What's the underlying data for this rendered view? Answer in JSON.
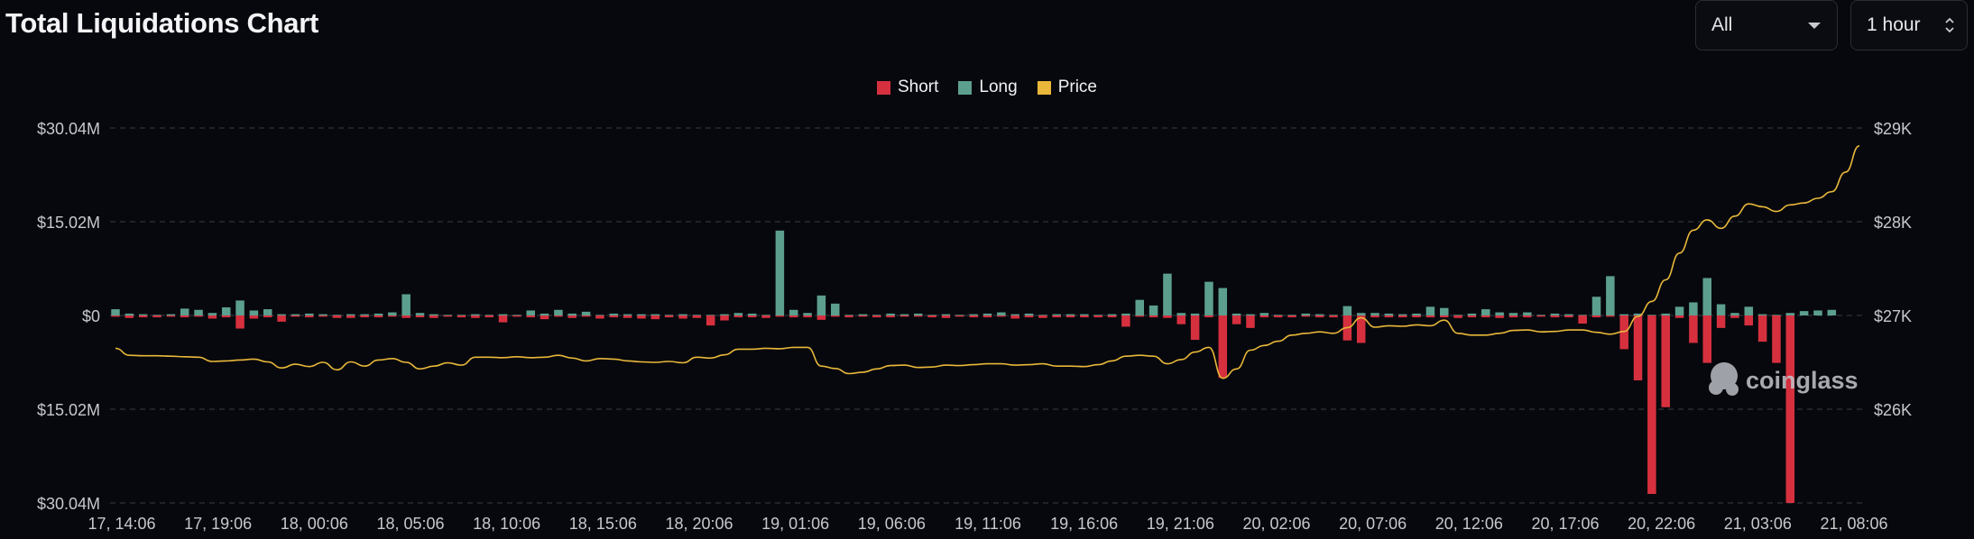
{
  "title": "Total Liquidations Chart",
  "filters": {
    "symbol": "All",
    "interval": "1 hour"
  },
  "watermark": "coinglass",
  "colors": {
    "short": "#d6303f",
    "long": "#5c9f8e",
    "price": "#e9b83a",
    "background": "#06080d",
    "grid": "#3a3d45",
    "axis_text": "#c8c8cc"
  },
  "chart_data": {
    "type": "bar",
    "title": "Total Liquidations Chart",
    "legend": [
      {
        "name": "Short",
        "color": "#d6303f"
      },
      {
        "name": "Long",
        "color": "#5c9f8e"
      },
      {
        "name": "Price",
        "color": "#e9b83a"
      }
    ],
    "legend_position": "top-center",
    "grid": true,
    "x_ticks": [
      "17, 14:06",
      "17, 19:06",
      "18, 00:06",
      "18, 05:06",
      "18, 10:06",
      "18, 15:06",
      "18, 20:06",
      "19, 01:06",
      "19, 06:06",
      "19, 11:06",
      "19, 16:06",
      "19, 21:06",
      "20, 02:06",
      "20, 07:06",
      "20, 12:06",
      "20, 17:06",
      "20, 22:06",
      "21, 03:06",
      "21, 08:06"
    ],
    "y_left_ticks": [
      "$30.04M",
      "$15.02M",
      "$0",
      "$15.02M",
      "$30.04M"
    ],
    "y_left_range": [
      -30.04,
      30.04
    ],
    "y_right_ticks": [
      "$29K",
      "$28K",
      "$27K",
      "$26K"
    ],
    "y_right_range": [
      25000,
      29000
    ],
    "series": [
      {
        "name": "Long",
        "values": [
          1.0,
          0.3,
          0.2,
          0.1,
          0.2,
          1.1,
          0.9,
          0.4,
          1.3,
          2.4,
          0.8,
          1.0,
          0.2,
          0.2,
          0.3,
          0.2,
          0.1,
          0.2,
          0.2,
          0.3,
          0.5,
          3.4,
          0.4,
          0.2,
          0.1,
          0.1,
          0.2,
          0.1,
          0.2,
          0.1,
          0.8,
          0.3,
          0.9,
          0.3,
          0.6,
          0.1,
          0.3,
          0.2,
          0.2,
          0.2,
          0.1,
          0.2,
          0.1,
          0.1,
          0.2,
          0.4,
          0.3,
          0.1,
          13.6,
          0.9,
          0.4,
          3.2,
          1.9,
          0.1,
          0.2,
          0.1,
          0.3,
          0.2,
          0.3,
          0.1,
          0.2,
          0.1,
          0.2,
          0.3,
          0.5,
          0.2,
          0.3,
          0.1,
          0.2,
          0.2,
          0.2,
          0.1,
          0.2,
          0.3,
          2.5,
          1.6,
          6.7,
          0.4,
          0.3,
          5.4,
          4.4,
          0.3,
          0.2,
          0.4,
          0.1,
          0.1,
          0.3,
          0.2,
          0.1,
          1.5,
          0.4,
          0.4,
          0.3,
          0.2,
          0.3,
          1.4,
          1.2,
          0.1,
          0.3,
          1.0,
          0.5,
          0.4,
          0.5,
          0.1,
          0.3,
          0.2,
          0.1,
          3.0,
          6.3,
          0.2,
          0.3,
          0.1,
          0.3,
          1.4,
          2.1,
          6.0,
          1.8,
          0.4,
          1.4,
          0.2,
          0.1,
          0.4,
          0.7,
          0.8,
          0.9
        ]
      },
      {
        "name": "Short",
        "values": [
          0.2,
          0.4,
          0.3,
          0.3,
          0.2,
          0.3,
          0.2,
          0.5,
          0.3,
          2.1,
          0.5,
          0.3,
          1.0,
          0.2,
          0.3,
          0.2,
          0.4,
          0.4,
          0.3,
          0.3,
          0.2,
          0.4,
          0.3,
          0.4,
          0.2,
          0.3,
          0.4,
          0.3,
          1.1,
          0.2,
          0.3,
          0.6,
          0.2,
          0.4,
          0.2,
          0.5,
          0.3,
          0.4,
          0.5,
          0.6,
          0.3,
          0.5,
          0.4,
          1.6,
          0.8,
          0.3,
          0.3,
          0.4,
          0.2,
          0.3,
          0.3,
          0.7,
          0.2,
          0.3,
          0.2,
          0.3,
          0.3,
          0.2,
          0.2,
          0.3,
          0.4,
          0.2,
          0.3,
          0.3,
          0.2,
          0.5,
          0.3,
          0.4,
          0.3,
          0.3,
          0.3,
          0.3,
          0.3,
          1.8,
          0.2,
          0.3,
          0.4,
          1.4,
          3.9,
          0.3,
          10.0,
          1.4,
          2.0,
          0.3,
          0.3,
          0.3,
          0.2,
          0.3,
          0.3,
          4.0,
          4.4,
          0.3,
          0.3,
          0.3,
          0.3,
          0.3,
          0.3,
          0.4,
          0.3,
          0.3,
          0.4,
          0.3,
          0.3,
          0.2,
          0.3,
          0.3,
          1.3,
          0.3,
          0.2,
          5.4,
          10.4,
          28.6,
          14.7,
          0.4,
          4.4,
          7.6,
          2.0,
          0.4,
          1.6,
          4.2,
          7.6,
          30.04
        ]
      },
      {
        "name": "Price",
        "values": [
          26650,
          26575,
          26570,
          26570,
          26565,
          26560,
          26555,
          26510,
          26515,
          26525,
          26535,
          26505,
          26440,
          26480,
          26455,
          26500,
          26420,
          26505,
          26460,
          26525,
          26540,
          26500,
          26430,
          26460,
          26495,
          26470,
          26555,
          26555,
          26550,
          26560,
          26550,
          26555,
          26575,
          26545,
          26515,
          26540,
          26535,
          26515,
          26505,
          26500,
          26510,
          26495,
          26555,
          26545,
          26580,
          26640,
          26640,
          26650,
          26645,
          26660,
          26660,
          26460,
          26435,
          26380,
          26395,
          26430,
          26465,
          26470,
          26445,
          26450,
          26470,
          26465,
          26475,
          26485,
          26485,
          26470,
          26475,
          26485,
          26460,
          26460,
          26455,
          26475,
          26515,
          26565,
          26575,
          26565,
          26485,
          26530,
          26610,
          26660,
          26330,
          26430,
          26630,
          26680,
          26725,
          26790,
          26810,
          26825,
          26810,
          26870,
          26975,
          26875,
          26890,
          26885,
          26900,
          26890,
          26950,
          26810,
          26790,
          26790,
          26810,
          26840,
          26845,
          26825,
          26830,
          26845,
          26845,
          26820,
          26800,
          26830,
          26990,
          27150,
          27380,
          27665,
          27910,
          28020,
          27930,
          28060,
          28190,
          28160,
          28110,
          28180,
          28200,
          28250,
          28320,
          28530,
          28810
        ]
      }
    ],
    "category_count": 127
  }
}
